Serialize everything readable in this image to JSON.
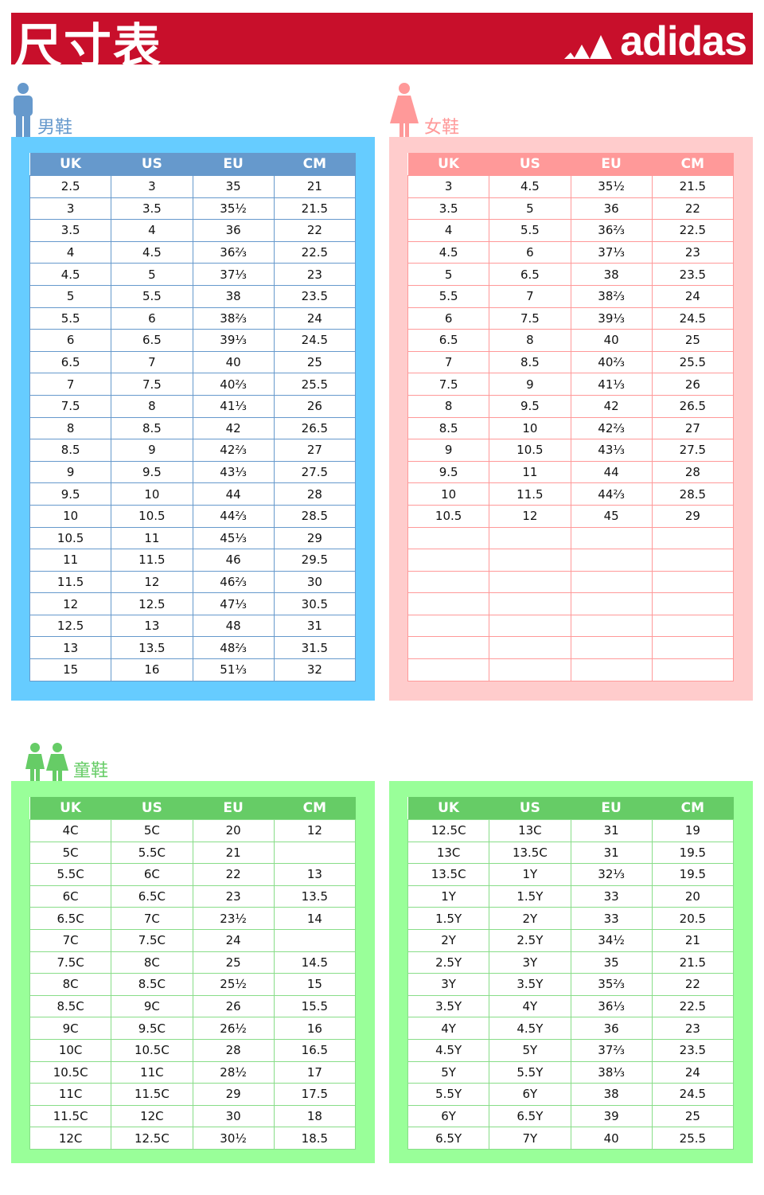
{
  "header": {
    "title": "尺寸表",
    "brand": "adidas",
    "brand_color": "#c80f2b"
  },
  "columns": [
    "UK",
    "US",
    "EU",
    "CM"
  ],
  "men": {
    "label": "男鞋",
    "colors": {
      "box": "#66ccff",
      "head": "#6699cc",
      "line": "#6699cc"
    },
    "rows": [
      [
        "2.5",
        "3",
        "35",
        "21"
      ],
      [
        "3",
        "3.5",
        "35½",
        "21.5"
      ],
      [
        "3.5",
        "4",
        "36",
        "22"
      ],
      [
        "4",
        "4.5",
        "36⅔",
        "22.5"
      ],
      [
        "4.5",
        "5",
        "37⅓",
        "23"
      ],
      [
        "5",
        "5.5",
        "38",
        "23.5"
      ],
      [
        "5.5",
        "6",
        "38⅔",
        "24"
      ],
      [
        "6",
        "6.5",
        "39⅓",
        "24.5"
      ],
      [
        "6.5",
        "7",
        "40",
        "25"
      ],
      [
        "7",
        "7.5",
        "40⅔",
        "25.5"
      ],
      [
        "7.5",
        "8",
        "41⅓",
        "26"
      ],
      [
        "8",
        "8.5",
        "42",
        "26.5"
      ],
      [
        "8.5",
        "9",
        "42⅔",
        "27"
      ],
      [
        "9",
        "9.5",
        "43⅓",
        "27.5"
      ],
      [
        "9.5",
        "10",
        "44",
        "28"
      ],
      [
        "10",
        "10.5",
        "44⅔",
        "28.5"
      ],
      [
        "10.5",
        "11",
        "45⅓",
        "29"
      ],
      [
        "11",
        "11.5",
        "46",
        "29.5"
      ],
      [
        "11.5",
        "12",
        "46⅔",
        "30"
      ],
      [
        "12",
        "12.5",
        "47⅓",
        "30.5"
      ],
      [
        "12.5",
        "13",
        "48",
        "31"
      ],
      [
        "13",
        "13.5",
        "48⅔",
        "31.5"
      ],
      [
        "15",
        "16",
        "51⅓",
        "32"
      ]
    ]
  },
  "women": {
    "label": "女鞋",
    "colors": {
      "box": "#ffcccc",
      "head": "#ff9999",
      "line": "#ff9999"
    },
    "rows": [
      [
        "3",
        "4.5",
        "35½",
        "21.5"
      ],
      [
        "3.5",
        "5",
        "36",
        "22"
      ],
      [
        "4",
        "5.5",
        "36⅔",
        "22.5"
      ],
      [
        "4.5",
        "6",
        "37⅓",
        "23"
      ],
      [
        "5",
        "6.5",
        "38",
        "23.5"
      ],
      [
        "5.5",
        "7",
        "38⅔",
        "24"
      ],
      [
        "6",
        "7.5",
        "39⅓",
        "24.5"
      ],
      [
        "6.5",
        "8",
        "40",
        "25"
      ],
      [
        "7",
        "8.5",
        "40⅔",
        "25.5"
      ],
      [
        "7.5",
        "9",
        "41⅓",
        "26"
      ],
      [
        "8",
        "9.5",
        "42",
        "26.5"
      ],
      [
        "8.5",
        "10",
        "42⅔",
        "27"
      ],
      [
        "9",
        "10.5",
        "43⅓",
        "27.5"
      ],
      [
        "9.5",
        "11",
        "44",
        "28"
      ],
      [
        "10",
        "11.5",
        "44⅔",
        "28.5"
      ],
      [
        "10.5",
        "12",
        "45",
        "29"
      ],
      [
        "",
        "",
        "",
        ""
      ],
      [
        "",
        "",
        "",
        ""
      ],
      [
        "",
        "",
        "",
        ""
      ],
      [
        "",
        "",
        "",
        ""
      ],
      [
        "",
        "",
        "",
        ""
      ],
      [
        "",
        "",
        "",
        ""
      ],
      [
        "",
        "",
        "",
        ""
      ]
    ]
  },
  "kids": {
    "label": "童鞋",
    "colors": {
      "box": "#99ff99",
      "head": "#66cc66",
      "line": "#88dd88"
    },
    "rows": [
      [
        "4C",
        "5C",
        "20",
        "12"
      ],
      [
        "5C",
        "5.5C",
        "21",
        ""
      ],
      [
        "5.5C",
        "6C",
        "22",
        "13"
      ],
      [
        "6C",
        "6.5C",
        "23",
        "13.5"
      ],
      [
        "6.5C",
        "7C",
        "23½",
        "14"
      ],
      [
        "7C",
        "7.5C",
        "24",
        ""
      ],
      [
        "7.5C",
        "8C",
        "25",
        "14.5"
      ],
      [
        "8C",
        "8.5C",
        "25½",
        "15"
      ],
      [
        "8.5C",
        "9C",
        "26",
        "15.5"
      ],
      [
        "9C",
        "9.5C",
        "26½",
        "16"
      ],
      [
        "10C",
        "10.5C",
        "28",
        "16.5"
      ],
      [
        "10.5C",
        "11C",
        "28½",
        "17"
      ],
      [
        "11C",
        "11.5C",
        "29",
        "17.5"
      ],
      [
        "11.5C",
        "12C",
        "30",
        "18"
      ],
      [
        "12C",
        "12.5C",
        "30½",
        "18.5"
      ]
    ]
  },
  "youth": {
    "colors": {
      "box": "#99ff99",
      "head": "#66cc66",
      "line": "#88dd88"
    },
    "rows": [
      [
        "12.5C",
        "13C",
        "31",
        "19"
      ],
      [
        "13C",
        "13.5C",
        "31",
        "19.5"
      ],
      [
        "13.5C",
        "1Y",
        "32⅓",
        "19.5"
      ],
      [
        "1Y",
        "1.5Y",
        "33",
        "20"
      ],
      [
        "1.5Y",
        "2Y",
        "33",
        "20.5"
      ],
      [
        "2Y",
        "2.5Y",
        "34½",
        "21"
      ],
      [
        "2.5Y",
        "3Y",
        "35",
        "21.5"
      ],
      [
        "3Y",
        "3.5Y",
        "35⅔",
        "22"
      ],
      [
        "3.5Y",
        "4Y",
        "36⅓",
        "22.5"
      ],
      [
        "4Y",
        "4.5Y",
        "36",
        "23"
      ],
      [
        "4.5Y",
        "5Y",
        "37⅔",
        "23.5"
      ],
      [
        "5Y",
        "5.5Y",
        "38⅓",
        "24"
      ],
      [
        "5.5Y",
        "6Y",
        "38",
        "24.5"
      ],
      [
        "6Y",
        "6.5Y",
        "39",
        "25"
      ],
      [
        "6.5Y",
        "7Y",
        "40",
        "25.5"
      ]
    ]
  }
}
